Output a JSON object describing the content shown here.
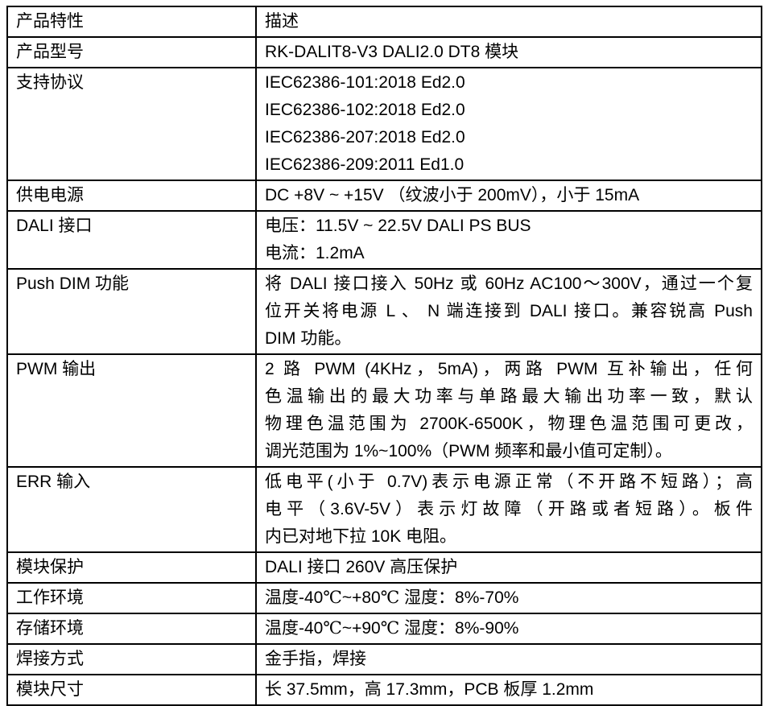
{
  "colors": {
    "text": "#000000",
    "border": "#000000",
    "background": "#ffffff"
  },
  "table": {
    "header": {
      "feature": "产品特性",
      "description": "描述"
    },
    "rows": [
      {
        "feature": "产品型号",
        "lines": [
          "RK-DALIT8-V3 DALI2.0 DT8 模块"
        ]
      },
      {
        "feature": "支持协议",
        "lines": [
          "IEC62386-101:2018 Ed2.0",
          "IEC62386-102:2018 Ed2.0",
          "IEC62386-207:2018 Ed2.0",
          "IEC62386-209:2011 Ed1.0"
        ]
      },
      {
        "feature": "供电电源",
        "lines": [
          "DC +8V ~ +15V （纹波小于 200mV），小于 15mA"
        ]
      },
      {
        "feature": "DALI 接口",
        "lines": [
          "电压：11.5V ~ 22.5V DALI PS BUS",
          "电流：1.2mA"
        ]
      },
      {
        "feature": "Push DIM 功能",
        "lines": [
          "将 DALI 接口接入 50Hz 或 60Hz AC100～300V，通过一个复",
          "位开关将电源 L 、 N 端连接到 DALI 接口。兼容锐高 Push",
          "DIM 功能。"
        ]
      },
      {
        "feature": "PWM 输出",
        "lines": [
          "2 路 PWM (4KHz，5mA)，两路 PWM 互补输出，任何",
          "色温输出的最大功率与单路最大输出功率一致，默认",
          "物理色温范围为 2700K-6500K，物理色温范围可更改，",
          "调光范围为 1%~100%（PWM 频率和最小值可定制）。"
        ]
      },
      {
        "feature": "ERR 输入",
        "lines": [
          "低电平(小于 0.7V)表示电源正常（不开路不短路）；高",
          "电平（3.6V-5V）表示灯故障（开路或者短路）。板件",
          "内已对地下拉 10K 电阻。"
        ]
      },
      {
        "feature": "模块保护",
        "lines": [
          "DALI 接口 260V 高压保护"
        ]
      },
      {
        "feature": "工作环境",
        "lines": [
          "温度-40℃~+80℃  湿度：8%-70%"
        ]
      },
      {
        "feature": "存储环境",
        "lines": [
          "温度-40℃~+90℃  湿度：8%-90%"
        ]
      },
      {
        "feature": "焊接方式",
        "lines": [
          "金手指，焊接"
        ]
      },
      {
        "feature": "模块尺寸",
        "lines": [
          "长 37.5mm，高 17.3mm，PCB 板厚 1.2mm"
        ]
      }
    ]
  }
}
